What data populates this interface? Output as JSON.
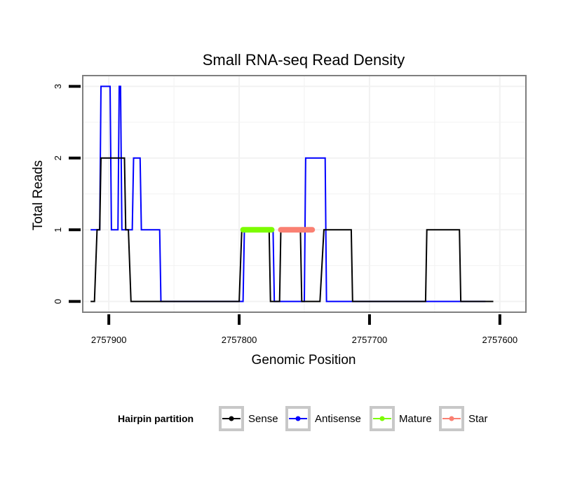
{
  "chart_data": {
    "type": "line",
    "title": "Small RNA-seq Read Density",
    "xlabel": "Genomic Position",
    "ylabel": "Total Reads",
    "x_reversed": true,
    "xlim": [
      2757920,
      2757580
    ],
    "ylim": [
      -0.15,
      3.15
    ],
    "x_ticks": [
      2757900,
      2757800,
      2757700,
      2757600
    ],
    "x_tick_labels": [
      "2757900",
      "2757800",
      "2757700",
      "2757600"
    ],
    "y_ticks": [
      0,
      1,
      2,
      3
    ],
    "y_tick_labels": [
      "0",
      "1",
      "2",
      "3"
    ],
    "grid": true,
    "legend": {
      "title": "Hairpin partition",
      "placement": "bottom",
      "items": [
        {
          "label": "Sense",
          "color": "#000000"
        },
        {
          "label": "Antisense",
          "color": "#0000ff"
        },
        {
          "label": "Mature",
          "color": "#7cfc00"
        },
        {
          "label": "Star",
          "color": "#fa8072"
        }
      ]
    },
    "series": [
      {
        "name": "Antisense",
        "color": "#0000ff",
        "style": "line",
        "points": [
          [
            2757914,
            1
          ],
          [
            2757907,
            1
          ],
          [
            2757906,
            3
          ],
          [
            2757899,
            3
          ],
          [
            2757898,
            1
          ],
          [
            2757893,
            1
          ],
          [
            2757892,
            3
          ],
          [
            2757891,
            3
          ],
          [
            2757890,
            1
          ],
          [
            2757882,
            1
          ],
          [
            2757881,
            2
          ],
          [
            2757876,
            2
          ],
          [
            2757875,
            1
          ],
          [
            2757861,
            1
          ],
          [
            2757860,
            0
          ],
          [
            2757797,
            0
          ],
          [
            2757796,
            1
          ],
          [
            2757774,
            1
          ],
          [
            2757773,
            0
          ],
          [
            2757750,
            0
          ],
          [
            2757749,
            2
          ],
          [
            2757734,
            2
          ],
          [
            2757733,
            0
          ],
          [
            2757611,
            0
          ]
        ]
      },
      {
        "name": "Sense",
        "color": "#000000",
        "style": "line",
        "points": [
          [
            2757914,
            0
          ],
          [
            2757911,
            0
          ],
          [
            2757909,
            1
          ],
          [
            2757907,
            1
          ],
          [
            2757906,
            2
          ],
          [
            2757888,
            2
          ],
          [
            2757887,
            1
          ],
          [
            2757885,
            1
          ],
          [
            2757883,
            0
          ],
          [
            2757800,
            0
          ],
          [
            2757798,
            1
          ],
          [
            2757777,
            1
          ],
          [
            2757776,
            0
          ],
          [
            2757769,
            0
          ],
          [
            2757768,
            1
          ],
          [
            2757753,
            1
          ],
          [
            2757752,
            0
          ],
          [
            2757738,
            0
          ],
          [
            2757735,
            1
          ],
          [
            2757714,
            1
          ],
          [
            2757713,
            0
          ],
          [
            2757657,
            0
          ],
          [
            2757656,
            1
          ],
          [
            2757631,
            1
          ],
          [
            2757630,
            0
          ],
          [
            2757605,
            0
          ]
        ]
      },
      {
        "name": "Mature",
        "color": "#7cfc00",
        "style": "segment",
        "points": [
          [
            2757797,
            1
          ],
          [
            2757775,
            1
          ]
        ]
      },
      {
        "name": "Star",
        "color": "#fa8072",
        "style": "segment",
        "points": [
          [
            2757768,
            1
          ],
          [
            2757744,
            1
          ]
        ]
      }
    ]
  }
}
